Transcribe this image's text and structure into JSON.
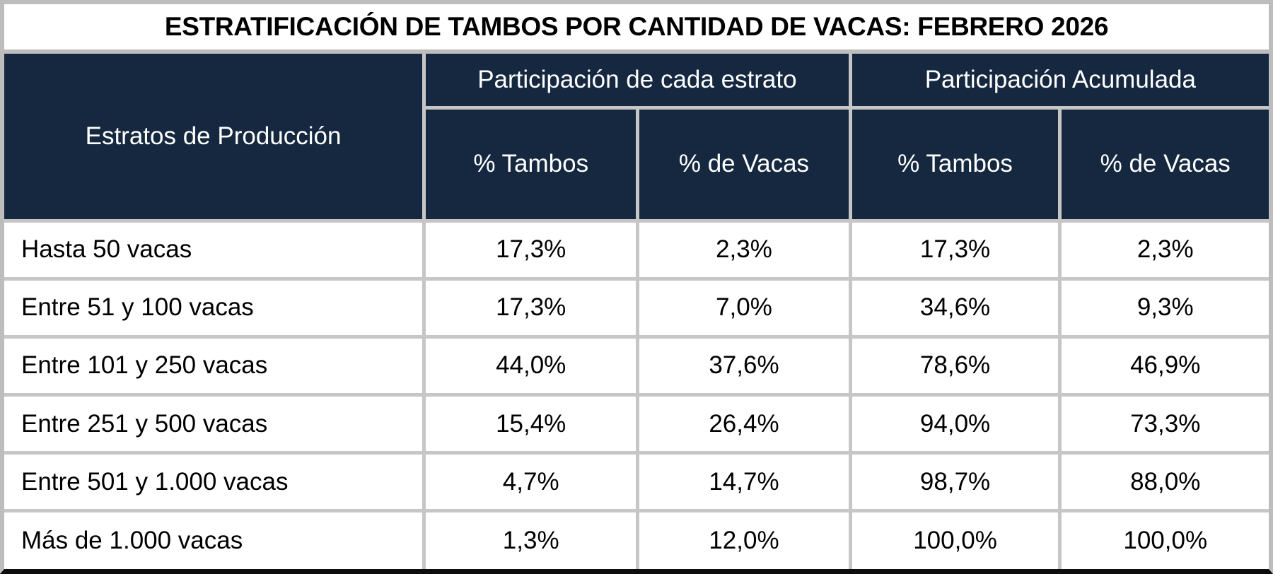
{
  "title": "ESTRATIFICACIÓN DE TAMBOS POR CANTIDAD DE VACAS: FEBRERO 2026",
  "table": {
    "stratum_header": "Estratos de Producción",
    "groups": [
      "Participación de cada estrato",
      "Participación Acumulada"
    ],
    "subheaders": [
      "% Tambos",
      "% de Vacas",
      "% Tambos",
      "% de Vacas"
    ],
    "rows": [
      {
        "stratum": "Hasta 50 vacas",
        "values": [
          "17,3%",
          "2,3%",
          "17,3%",
          "2,3%"
        ]
      },
      {
        "stratum": "Entre 51 y 100 vacas",
        "values": [
          "17,3%",
          "7,0%",
          "34,6%",
          "9,3%"
        ]
      },
      {
        "stratum": "Entre 101 y 250 vacas",
        "values": [
          "44,0%",
          "37,6%",
          "78,6%",
          "46,9%"
        ]
      },
      {
        "stratum": "Entre 251 y 500 vacas",
        "values": [
          "15,4%",
          "26,4%",
          "94,0%",
          "73,3%"
        ]
      },
      {
        "stratum": "Entre 501 y 1.000 vacas",
        "values": [
          "4,7%",
          "14,7%",
          "98,7%",
          "88,0%"
        ]
      },
      {
        "stratum": "Más de 1.000 vacas",
        "values": [
          "1,3%",
          "12,0%",
          "100,0%",
          "100,0%"
        ]
      }
    ]
  },
  "colors": {
    "header_bg": "#152840",
    "header_text": "#ffffff",
    "grid_line": "#c6c6c6",
    "outer_border": "#bdbdbd",
    "bottom_border": "#0d0d0d",
    "title_text": "#000000",
    "body_text": "#000000"
  },
  "chart_data": {
    "type": "table",
    "title": "ESTRATIFICACIÓN DE TAMBOS POR CANTIDAD DE VACAS: FEBRERO 2026",
    "row_header": "Estratos de Producción",
    "column_groups": [
      {
        "label": "Participación de cada estrato",
        "columns": [
          "% Tambos",
          "% de Vacas"
        ]
      },
      {
        "label": "Participación Acumulada",
        "columns": [
          "% Tambos",
          "% de Vacas"
        ]
      }
    ],
    "categories": [
      "Hasta 50 vacas",
      "Entre 51 y 100 vacas",
      "Entre 101 y 250 vacas",
      "Entre 251 y 500 vacas",
      "Entre 501 y 1.000 vacas",
      "Más de 1.000 vacas"
    ],
    "series": [
      {
        "name": "Participación de cada estrato - % Tambos",
        "values": [
          17.3,
          17.3,
          44.0,
          15.4,
          4.7,
          1.3
        ]
      },
      {
        "name": "Participación de cada estrato - % de Vacas",
        "values": [
          2.3,
          7.0,
          37.6,
          26.4,
          14.7,
          12.0
        ]
      },
      {
        "name": "Participación Acumulada - % Tambos",
        "values": [
          17.3,
          34.6,
          78.6,
          94.0,
          98.7,
          100.0
        ]
      },
      {
        "name": "Participación Acumulada - % de Vacas",
        "values": [
          2.3,
          9.3,
          46.9,
          73.3,
          88.0,
          100.0
        ]
      }
    ],
    "value_format": "percent with comma decimal separator"
  }
}
